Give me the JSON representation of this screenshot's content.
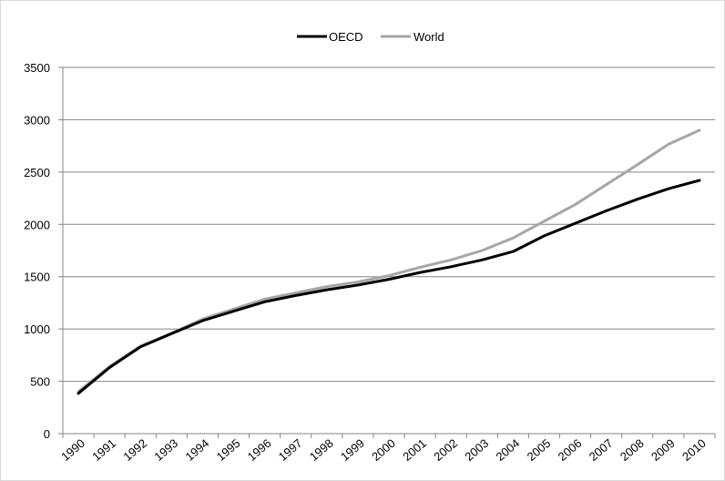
{
  "chart_data": {
    "type": "line",
    "title": "",
    "xlabel": "",
    "ylabel": "",
    "categories": [
      "1990",
      "1991",
      "1992",
      "1993",
      "1994",
      "1995",
      "1996",
      "1997",
      "1998",
      "1999",
      "2000",
      "2001",
      "2002",
      "2003",
      "2004",
      "2005",
      "2006",
      "2007",
      "2008",
      "2009",
      "2010"
    ],
    "ylim": [
      0,
      3500
    ],
    "yticks": [
      0,
      500,
      1000,
      1500,
      2000,
      2500,
      3000,
      3500
    ],
    "ytick_labels": [
      "0",
      "500",
      "1000",
      "1500",
      "2000",
      "2500",
      "3000",
      "3500"
    ],
    "grid": "horizontal",
    "legend_position": "top-center",
    "series": [
      {
        "name": "OECD",
        "color": "#000000",
        "values": [
          385,
          630,
          830,
          955,
          1080,
          1170,
          1260,
          1320,
          1375,
          1420,
          1475,
          1540,
          1595,
          1660,
          1740,
          1890,
          2010,
          2130,
          2240,
          2340,
          2420
        ]
      },
      {
        "name": "World",
        "color": "#a6a6a6",
        "values": [
          400,
          640,
          835,
          960,
          1095,
          1190,
          1285,
          1345,
          1405,
          1450,
          1510,
          1590,
          1660,
          1750,
          1870,
          2030,
          2190,
          2380,
          2570,
          2765,
          2900
        ]
      }
    ]
  }
}
